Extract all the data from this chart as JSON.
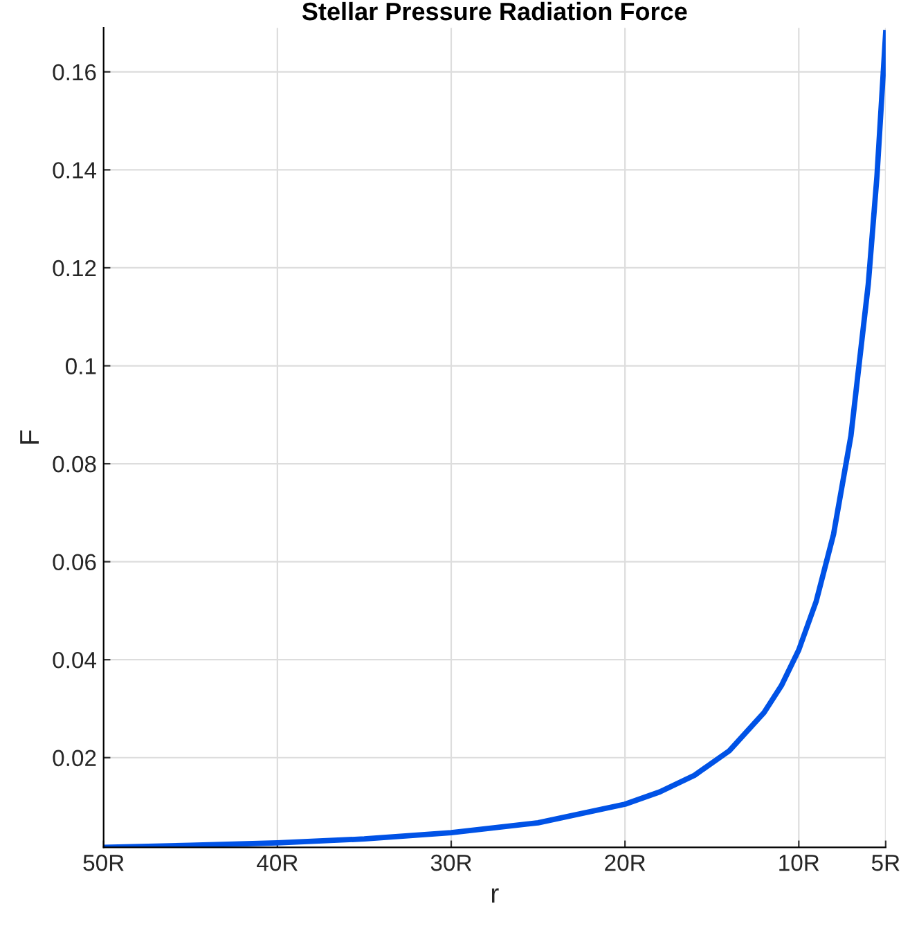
{
  "chart_data": {
    "type": "line",
    "title": "Stellar Pressure Radiation Force",
    "xlabel": "r",
    "ylabel": "F",
    "x": [
      50,
      45,
      40,
      35,
      30,
      25,
      20,
      18,
      16,
      14,
      12,
      11,
      10,
      9,
      8,
      7,
      6,
      5.5,
      5
    ],
    "series": [
      {
        "color": "#0052e6",
        "values": [
          0.0017,
          0.0021,
          0.0026,
          0.0034,
          0.0047,
          0.0067,
          0.0105,
          0.013,
          0.0164,
          0.0214,
          0.0292,
          0.0347,
          0.042,
          0.0519,
          0.0656,
          0.0857,
          0.1167,
          0.1388,
          0.168
        ]
      }
    ],
    "xlim": [
      50,
      5
    ],
    "ylim": [
      0.0017,
      0.169
    ],
    "xticks": [
      {
        "value": 50,
        "label": "50R"
      },
      {
        "value": 40,
        "label": "40R"
      },
      {
        "value": 30,
        "label": "30R"
      },
      {
        "value": 20,
        "label": "20R"
      },
      {
        "value": 10,
        "label": "10R"
      },
      {
        "value": 5,
        "label": "5R"
      }
    ],
    "yticks": [
      0.02,
      0.04,
      0.06,
      0.08,
      0.1,
      0.12,
      0.14,
      0.16
    ],
    "grid": true,
    "marker": "none",
    "line_style": "solid"
  }
}
